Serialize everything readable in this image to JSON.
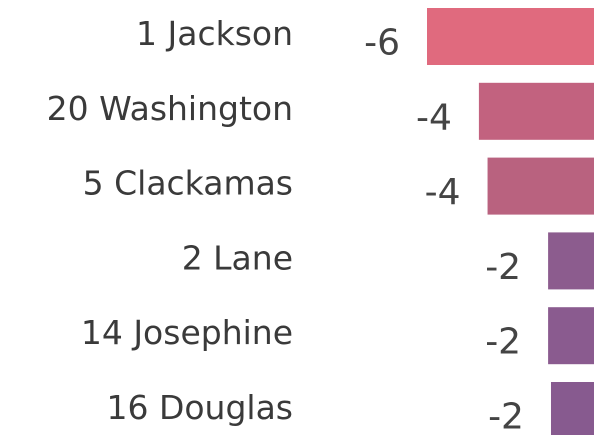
{
  "chart_data": {
    "type": "bar",
    "orientation": "horizontal",
    "categories": [
      "1 Jackson",
      "20 Washington",
      "5 Clackamas",
      "2 Lane",
      "14 Josephine",
      "16 Douglas"
    ],
    "values": [
      -6,
      -4.2,
      -3.9,
      -1.8,
      -1.8,
      -1.7
    ],
    "value_labels": [
      "-6",
      "-4",
      "-4",
      "-2",
      "-2",
      "-2"
    ],
    "colors": [
      "#e06a7e",
      "#c2627f",
      "#b9627f",
      "#8c5c8e",
      "#8a5b8f",
      "#875a8f"
    ],
    "xlim": [
      -6,
      0
    ]
  }
}
